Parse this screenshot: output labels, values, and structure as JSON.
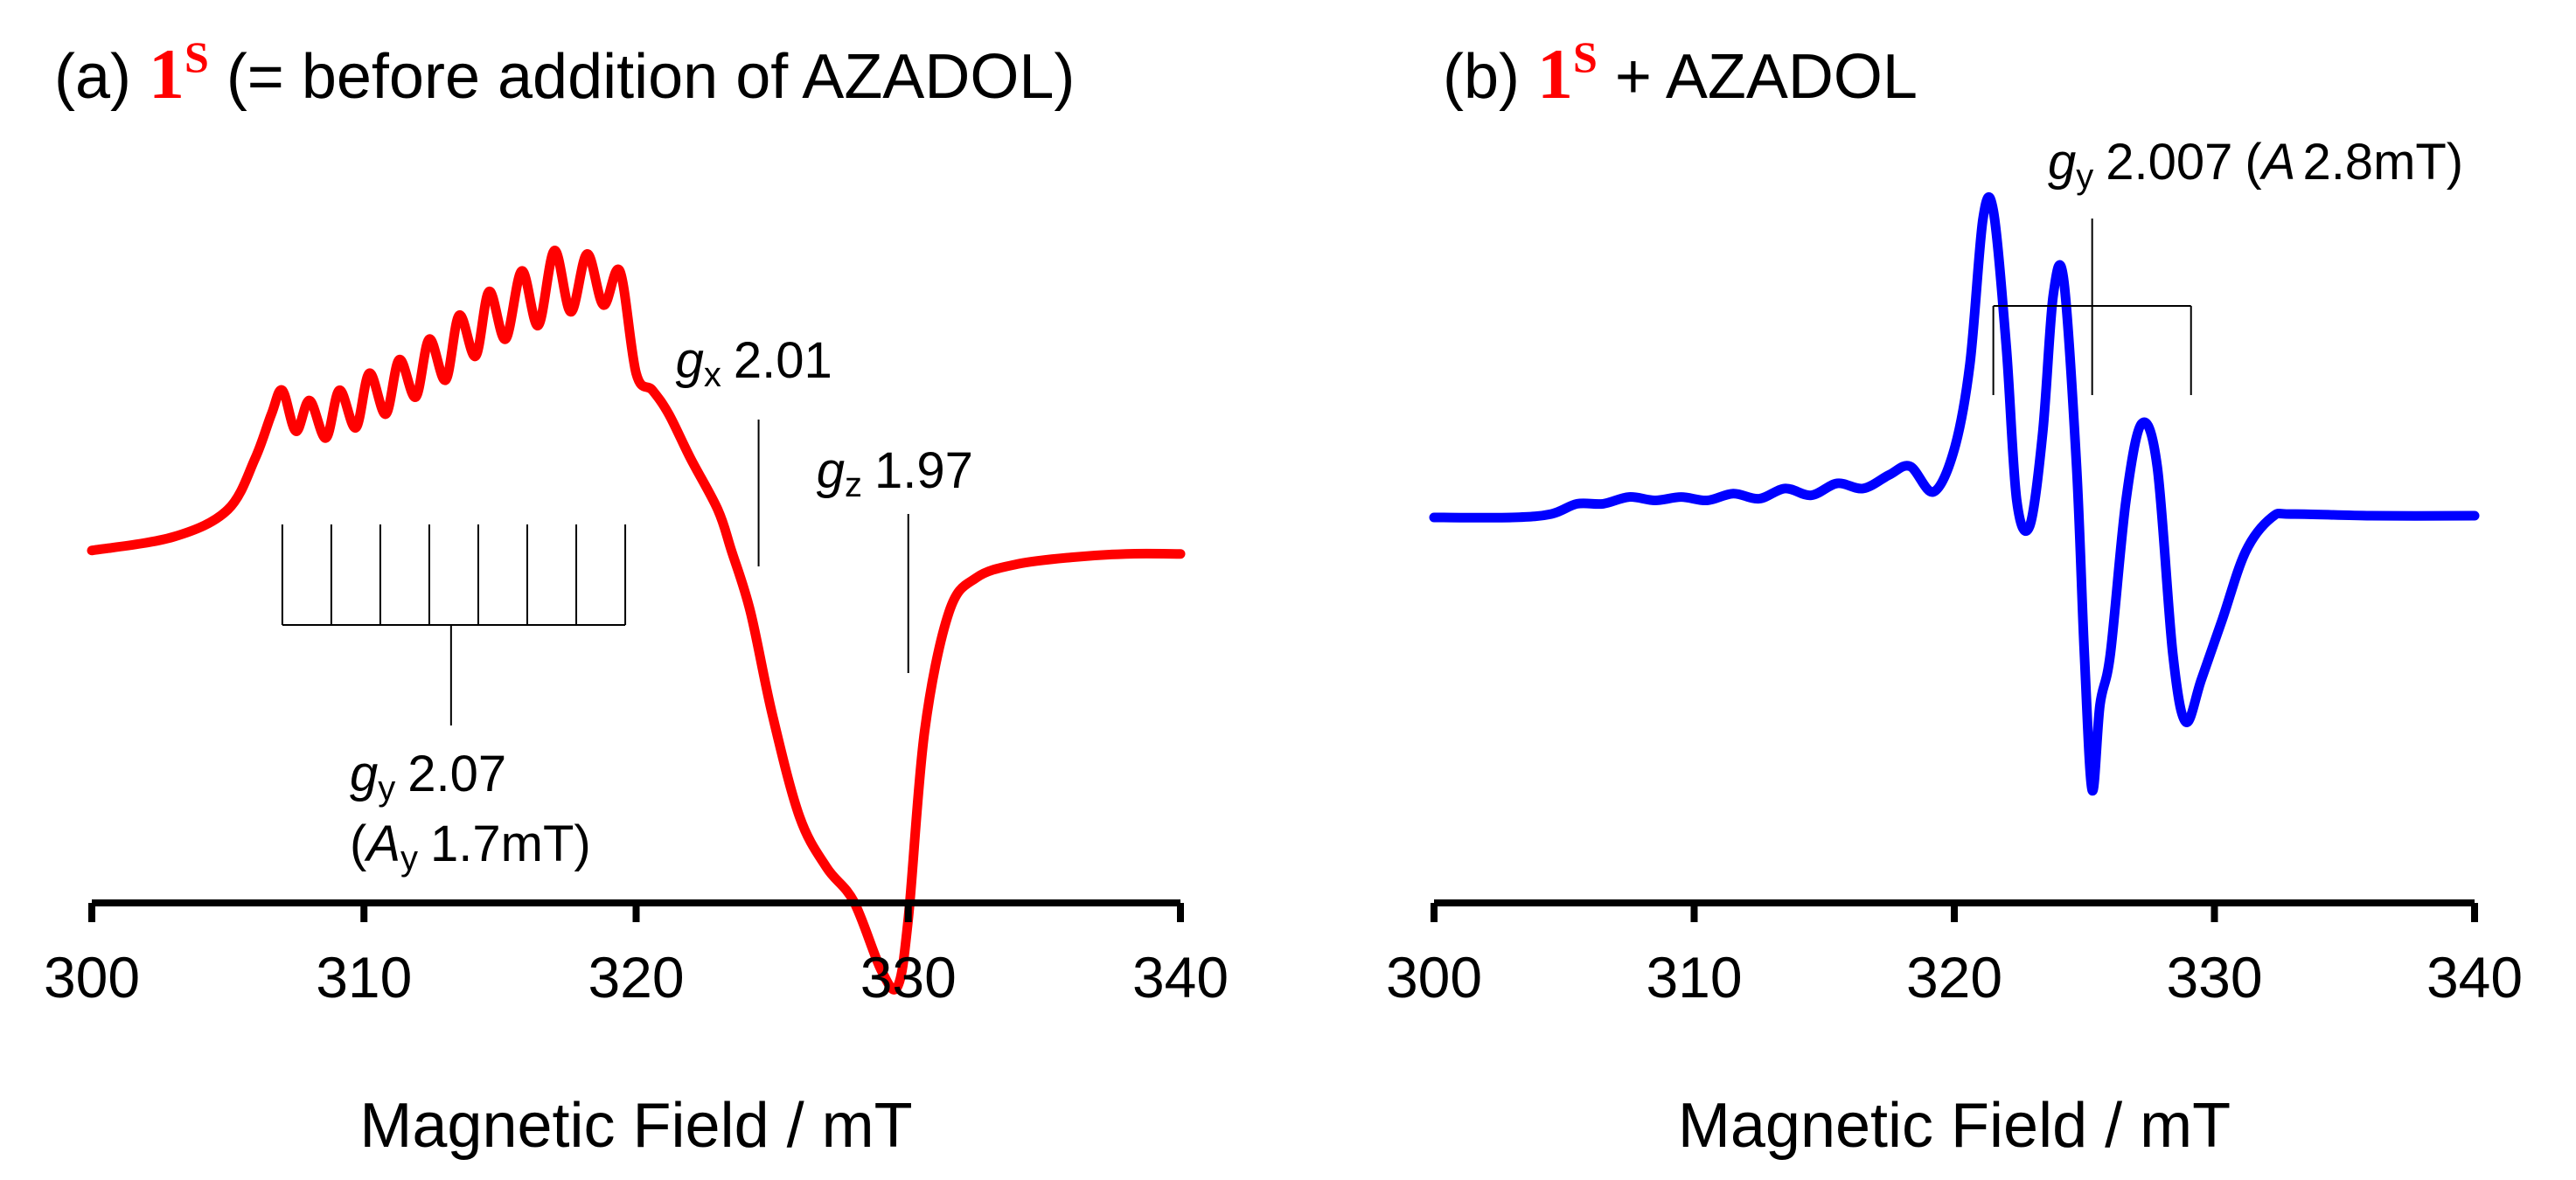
{
  "figure": {
    "panels": [
      {
        "title_prefix": "(a) ",
        "compound": "1",
        "compound_sup": "S",
        "title_suffix": " (= before addition of AZADOL)",
        "xlabel": "Magnetic Field / mT"
      },
      {
        "title_prefix": "(b) ",
        "compound": "1",
        "compound_sup": "S",
        "title_suffix": " + AZADOL",
        "xlabel": "Magnetic Field / mT"
      }
    ]
  },
  "chart_data": [
    {
      "type": "line",
      "title": "(a) 1S (= before addition of AZADOL)",
      "xlabel": "Magnetic Field / mT",
      "ylabel": "",
      "xlim": [
        300,
        340
      ],
      "ylim": [
        -1.2,
        1.2
      ],
      "xticks": [
        300,
        310,
        320,
        330,
        340
      ],
      "tick_labels": [
        "300",
        "310",
        "320",
        "330",
        "340"
      ],
      "grid": false,
      "color": "#ff0000",
      "series": [
        {
          "name": "1S",
          "x": [
            300,
            303,
            305,
            306,
            306.6,
            307.0,
            307.5,
            308.0,
            308.6,
            309.1,
            309.7,
            310.2,
            310.8,
            311.3,
            311.9,
            312.4,
            313.0,
            313.5,
            314.1,
            314.6,
            315.2,
            315.8,
            316.4,
            317.0,
            317.6,
            318.2,
            318.8,
            319.4,
            320.0,
            320.6,
            321.2,
            322.0,
            323.0,
            323.5,
            324.2,
            325.0,
            326.0,
            327.0,
            328.0,
            329.0,
            329.6,
            330.0,
            330.6,
            331.5,
            332.5,
            334.0,
            336.0,
            338.0,
            340.0
          ],
          "y": [
            -0.02,
            0.02,
            0.1,
            0.25,
            0.38,
            0.45,
            0.33,
            0.42,
            0.31,
            0.45,
            0.34,
            0.5,
            0.38,
            0.54,
            0.43,
            0.6,
            0.48,
            0.67,
            0.55,
            0.74,
            0.6,
            0.8,
            0.64,
            0.86,
            0.68,
            0.85,
            0.7,
            0.8,
            0.5,
            0.45,
            0.38,
            0.25,
            0.1,
            -0.02,
            -0.2,
            -0.5,
            -0.8,
            -0.95,
            -1.05,
            -1.25,
            -1.3,
            -1.1,
            -0.55,
            -0.2,
            -0.1,
            -0.06,
            -0.04,
            -0.03,
            -0.03
          ]
        }
      ],
      "annotations": [
        {
          "label": "g",
          "sub": "x",
          "value": "2.01",
          "x": 324.5
        },
        {
          "label": "g",
          "sub": "z",
          "value": "1.97",
          "x": 330.0
        },
        {
          "label": "g",
          "sub": "y",
          "value": "2.07",
          "x": 313.2,
          "line2_prefix": "(A",
          "line2_sub": "y",
          "line2_value": "1.7mT)",
          "hyperfine_lines": 8,
          "hyperfine_start": 307.0,
          "hyperfine_spacing": 1.8
        }
      ]
    },
    {
      "type": "line",
      "title": "(b) 1S + AZADOL",
      "xlabel": "Magnetic Field / mT",
      "ylabel": "",
      "xlim": [
        300,
        340
      ],
      "ylim": [
        -1.2,
        1.2
      ],
      "xticks": [
        300,
        310,
        320,
        330,
        340
      ],
      "tick_labels": [
        "300",
        "310",
        "320",
        "330",
        "340"
      ],
      "grid": false,
      "color": "#0000ff",
      "series": [
        {
          "name": "1S + AZADOL",
          "x": [
            300,
            303,
            304.5,
            305.5,
            306.5,
            307.5,
            308.5,
            309.5,
            310.5,
            311.5,
            312.5,
            313.5,
            314.5,
            315.5,
            316.5,
            317.5,
            318.3,
            319.2,
            320.0,
            320.6,
            321.1,
            321.5,
            322.0,
            322.4,
            322.9,
            323.4,
            323.8,
            324.2,
            324.7,
            325.0,
            325.3,
            325.6,
            326.0,
            326.6,
            327.2,
            327.8,
            328.4,
            328.9,
            329.5,
            330.3,
            331.2,
            332.2,
            333.0,
            336.0,
            340.0
          ],
          "y": [
            0.0,
            0.0,
            0.02,
            0.08,
            0.08,
            0.12,
            0.1,
            0.12,
            0.1,
            0.14,
            0.11,
            0.17,
            0.13,
            0.2,
            0.17,
            0.25,
            0.3,
            0.15,
            0.4,
            0.9,
            1.75,
            1.8,
            1.0,
            0.1,
            -0.05,
            0.5,
            1.3,
            1.4,
            0.3,
            -0.8,
            -1.6,
            -1.1,
            -0.8,
            0.1,
            0.55,
            0.3,
            -0.8,
            -1.2,
            -0.95,
            -0.6,
            -0.2,
            0.0,
            0.02,
            0.01,
            0.01
          ]
        }
      ],
      "annotations": [
        {
          "label": "g",
          "sub": "y",
          "value": "2.007",
          "x": 325.3,
          "line2_prefix": "(A",
          "line2_value": "2.8mT)",
          "hyperfine_lines": 3,
          "hyperfine_start": 321.5,
          "hyperfine_spacing": 3.8
        }
      ]
    }
  ]
}
